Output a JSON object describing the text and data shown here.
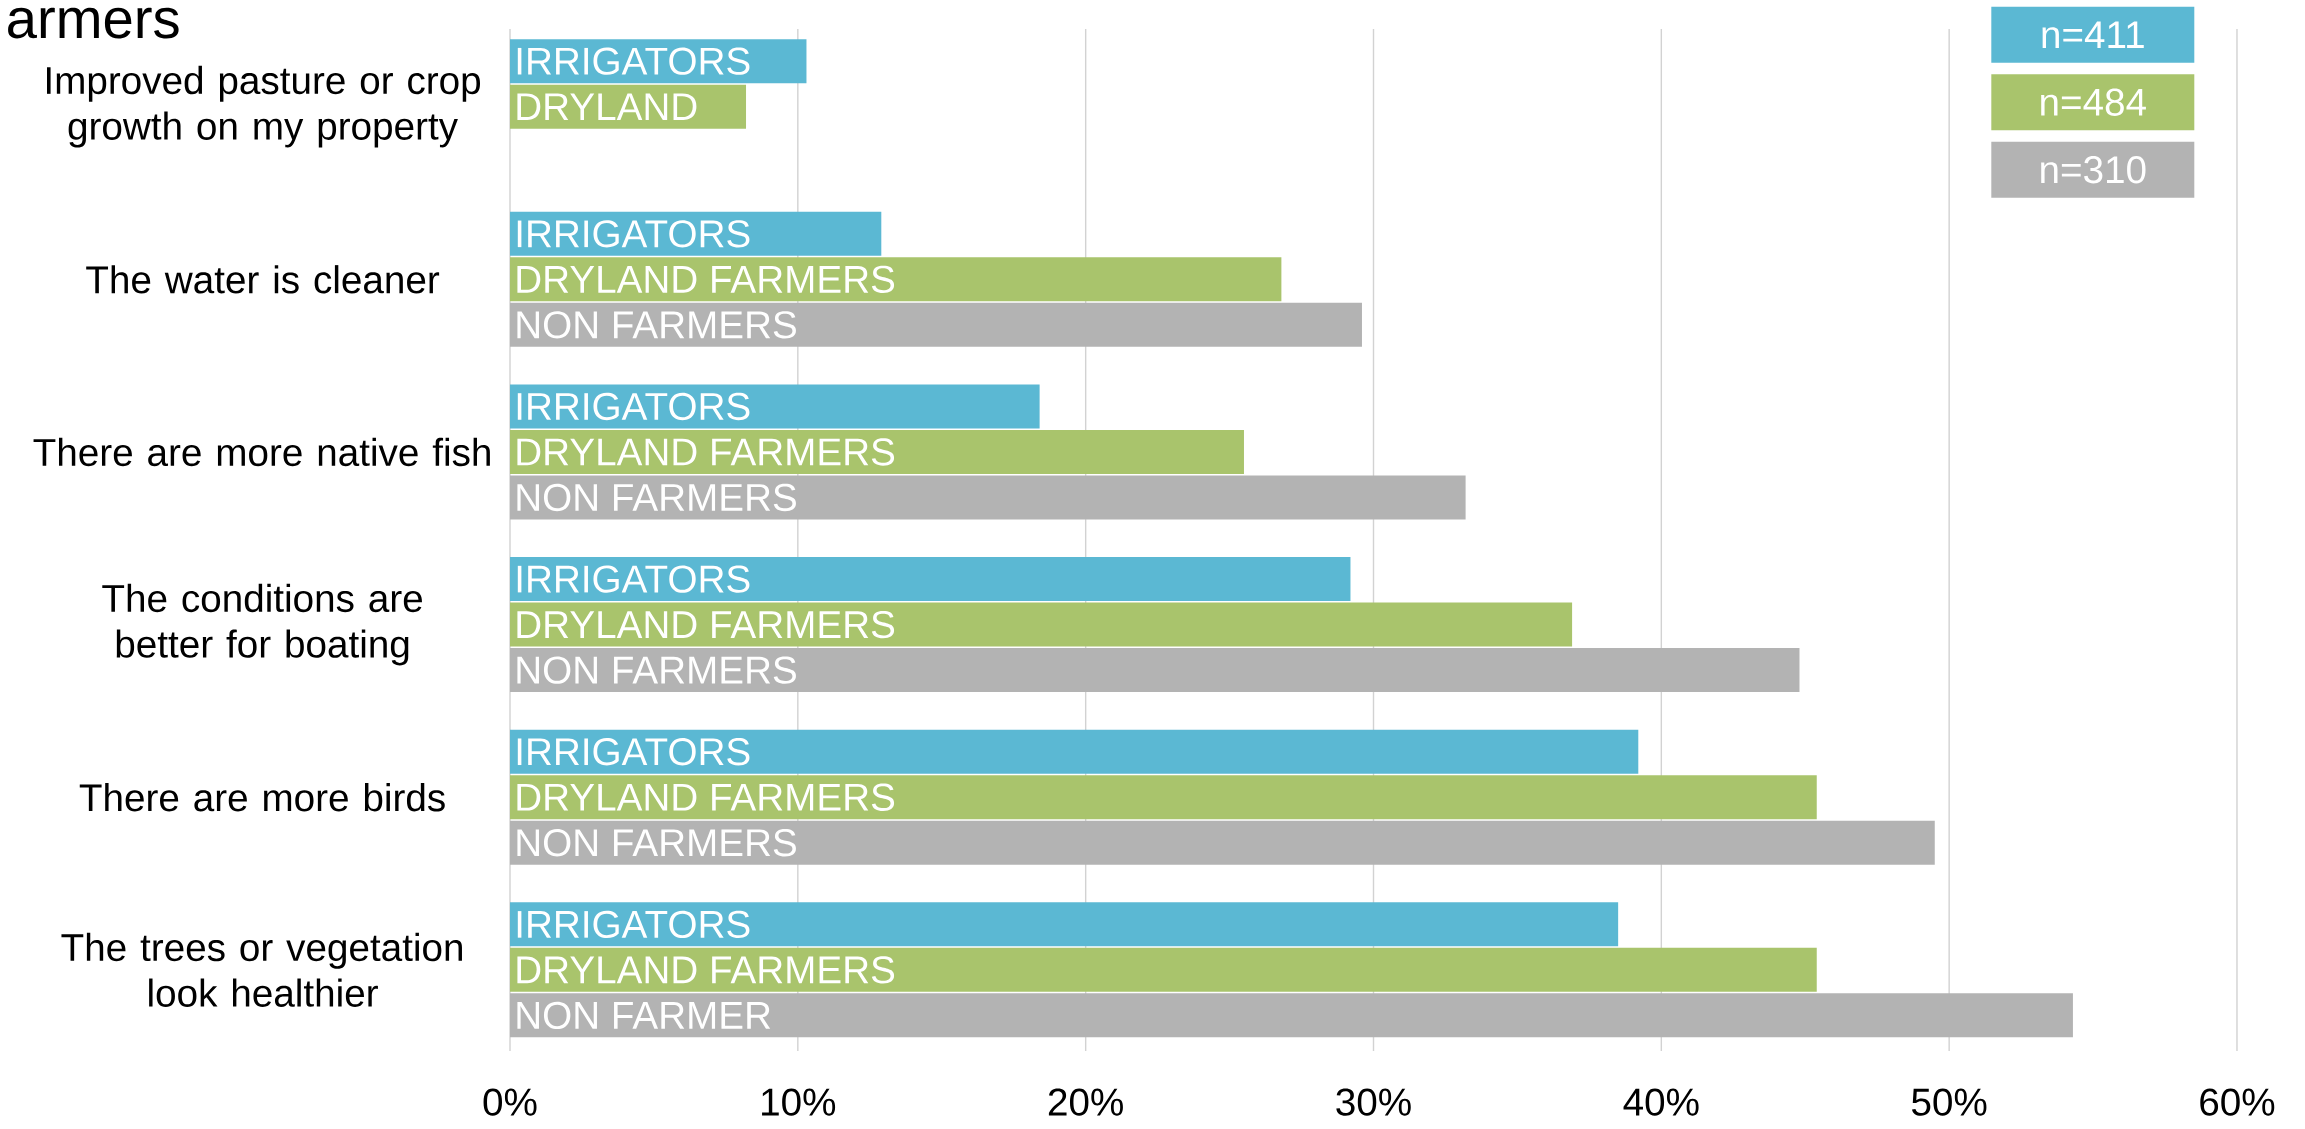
{
  "chart_data": {
    "type": "bar",
    "orientation": "horizontal",
    "title": "armers",
    "categories": [
      "Improved pasture or crop growth on my property",
      "The water is cleaner",
      "There are more native fish",
      "The conditions are better for boating",
      "There are more birds",
      "The trees or vegetation look healthier"
    ],
    "series": [
      {
        "name": "n=411",
        "color": "#5bb8d3",
        "values": [
          10.3,
          12.9,
          18.4,
          29.2,
          39.2,
          38.5
        ]
      },
      {
        "name": "n=484",
        "color": "#a9c46c",
        "values": [
          8.2,
          26.8,
          25.5,
          36.9,
          45.4,
          45.4
        ]
      },
      {
        "name": "n=310",
        "color": "#b3b3b3",
        "values": [
          null,
          29.6,
          33.2,
          44.8,
          49.5,
          54.3
        ]
      }
    ],
    "annotations": [
      "IRRIGATORS",
      "DRYLAND",
      "IRRIGATORS",
      "DRYLAND FARMERS",
      "NON FARMERS",
      "IRRIGATORS",
      "DRYLAND FARMERS",
      "NON FARMERS",
      "IRRIGATORS",
      "DRYLAND FARMERS",
      "NON FARMERS",
      "IRRIGATORS",
      "DRYLAND FARMERS",
      "NON FARMERS",
      "IRRIGATORS",
      "DRYLAND FARMERS",
      "NON FARMER"
    ],
    "xlim": [
      0,
      60
    ],
    "xticks": [
      {
        "value": 0,
        "label": "0%"
      },
      {
        "value": 10,
        "label": "10%"
      },
      {
        "value": 20,
        "label": "20%"
      },
      {
        "value": 30,
        "label": "30%"
      },
      {
        "value": 40,
        "label": "40%"
      },
      {
        "value": 50,
        "label": "50%"
      },
      {
        "value": 60,
        "label": "60%"
      }
    ],
    "grid": "x",
    "legend": "top right"
  }
}
